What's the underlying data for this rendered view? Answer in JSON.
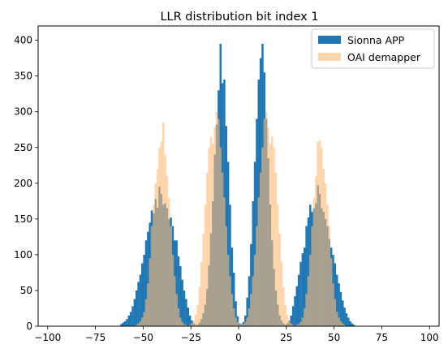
{
  "chart_data": {
    "type": "bar",
    "title": "LLR distribution bit index 1",
    "xlabel": "",
    "ylabel": "",
    "xlim": [
      -105,
      105
    ],
    "ylim": [
      0,
      420
    ],
    "xticks": [
      -100,
      -75,
      -50,
      -25,
      0,
      25,
      50,
      75,
      100
    ],
    "yticks": [
      0,
      50,
      100,
      150,
      200,
      250,
      300,
      350,
      400
    ],
    "grid": false,
    "legend_position": "top-right",
    "bin_width": 1,
    "series": [
      {
        "name": "Sionna APP",
        "color": "#1f77b4",
        "opacity": 1.0,
        "bins": [
          [
            -62,
            3
          ],
          [
            -61,
            5
          ],
          [
            -60,
            7
          ],
          [
            -59,
            10
          ],
          [
            -58,
            15
          ],
          [
            -57,
            20
          ],
          [
            -56,
            28
          ],
          [
            -55,
            38
          ],
          [
            -54,
            50
          ],
          [
            -53,
            62
          ],
          [
            -52,
            72
          ],
          [
            -51,
            88
          ],
          [
            -50,
            100
          ],
          [
            -49,
            120
          ],
          [
            -48,
            132
          ],
          [
            -47,
            145
          ],
          [
            -46,
            162
          ],
          [
            -45,
            158
          ],
          [
            -44,
            178
          ],
          [
            -43,
            166
          ],
          [
            -42,
            195
          ],
          [
            -41,
            185
          ],
          [
            -40,
            170
          ],
          [
            -39,
            172
          ],
          [
            -38,
            165
          ],
          [
            -37,
            150
          ],
          [
            -36,
            152
          ],
          [
            -35,
            140
          ],
          [
            -34,
            120
          ],
          [
            -33,
            120
          ],
          [
            -32,
            98
          ],
          [
            -31,
            84
          ],
          [
            -30,
            65
          ],
          [
            -29,
            50
          ],
          [
            -28,
            38
          ],
          [
            -27,
            26
          ],
          [
            -26,
            15
          ],
          [
            -25,
            8
          ],
          [
            -24,
            4
          ],
          [
            -23,
            2
          ],
          [
            -22,
            2
          ],
          [
            -21,
            5
          ],
          [
            -20,
            10
          ],
          [
            -19,
            18
          ],
          [
            -18,
            30
          ],
          [
            -17,
            52
          ],
          [
            -16,
            85
          ],
          [
            -15,
            130
          ],
          [
            -14,
            175
          ],
          [
            -13,
            240
          ],
          [
            -12,
            282
          ],
          [
            -11,
            330
          ],
          [
            -10,
            395
          ],
          [
            -9,
            340
          ],
          [
            -8,
            345
          ],
          [
            -7,
            280
          ],
          [
            -6,
            230
          ],
          [
            -5,
            170
          ],
          [
            -4,
            110
          ],
          [
            -3,
            75
          ],
          [
            -2,
            35
          ],
          [
            -1,
            14
          ],
          [
            0,
            4
          ],
          [
            1,
            3
          ],
          [
            2,
            6
          ],
          [
            3,
            15
          ],
          [
            4,
            40
          ],
          [
            5,
            70
          ],
          [
            6,
            115
          ],
          [
            7,
            175
          ],
          [
            8,
            230
          ],
          [
            9,
            290
          ],
          [
            10,
            345
          ],
          [
            11,
            375
          ],
          [
            12,
            395
          ],
          [
            13,
            355
          ],
          [
            14,
            290
          ],
          [
            15,
            235
          ],
          [
            16,
            170
          ],
          [
            17,
            120
          ],
          [
            18,
            80
          ],
          [
            19,
            50
          ],
          [
            20,
            30
          ],
          [
            21,
            15
          ],
          [
            22,
            8
          ],
          [
            23,
            4
          ],
          [
            24,
            2
          ],
          [
            25,
            4
          ],
          [
            26,
            8
          ],
          [
            27,
            15
          ],
          [
            28,
            28
          ],
          [
            29,
            42
          ],
          [
            30,
            56
          ],
          [
            31,
            72
          ],
          [
            32,
            90
          ],
          [
            33,
            102
          ],
          [
            34,
            110
          ],
          [
            35,
            140
          ],
          [
            36,
            152
          ],
          [
            37,
            170
          ],
          [
            38,
            160
          ],
          [
            39,
            165
          ],
          [
            40,
            172
          ],
          [
            41,
            197
          ],
          [
            42,
            185
          ],
          [
            43,
            165
          ],
          [
            44,
            160
          ],
          [
            45,
            150
          ],
          [
            46,
            140
          ],
          [
            47,
            122
          ],
          [
            48,
            110
          ],
          [
            49,
            100
          ],
          [
            50,
            88
          ],
          [
            51,
            72
          ],
          [
            52,
            60
          ],
          [
            53,
            48
          ],
          [
            54,
            36
          ],
          [
            55,
            26
          ],
          [
            56,
            18
          ],
          [
            57,
            12
          ],
          [
            58,
            7
          ],
          [
            59,
            4
          ],
          [
            60,
            2
          ]
        ]
      },
      {
        "name": "OAI demapper",
        "color": "#ffbb78",
        "opacity": 0.6,
        "bins": [
          [
            -54,
            2
          ],
          [
            -53,
            4
          ],
          [
            -52,
            7
          ],
          [
            -51,
            12
          ],
          [
            -50,
            20
          ],
          [
            -49,
            38
          ],
          [
            -48,
            60
          ],
          [
            -47,
            95
          ],
          [
            -46,
            140
          ],
          [
            -45,
            170
          ],
          [
            -44,
            200
          ],
          [
            -43,
            220
          ],
          [
            -42,
            250
          ],
          [
            -41,
            258
          ],
          [
            -40,
            285
          ],
          [
            -39,
            240
          ],
          [
            -38,
            210
          ],
          [
            -37,
            180
          ],
          [
            -36,
            140
          ],
          [
            -35,
            100
          ],
          [
            -34,
            70
          ],
          [
            -33,
            45
          ],
          [
            -32,
            25
          ],
          [
            -31,
            12
          ],
          [
            -30,
            6
          ],
          [
            -29,
            3
          ],
          [
            -28,
            2
          ],
          [
            -26,
            2
          ],
          [
            -25,
            4
          ],
          [
            -24,
            8
          ],
          [
            -23,
            16
          ],
          [
            -22,
            30
          ],
          [
            -21,
            55
          ],
          [
            -20,
            90
          ],
          [
            -19,
            130
          ],
          [
            -18,
            170
          ],
          [
            -17,
            215
          ],
          [
            -16,
            250
          ],
          [
            -15,
            265
          ],
          [
            -14,
            255
          ],
          [
            -13,
            278
          ],
          [
            -12,
            300
          ],
          [
            -11,
            290
          ],
          [
            -10,
            250
          ],
          [
            -9,
            215
          ],
          [
            -8,
            180
          ],
          [
            -7,
            140
          ],
          [
            -6,
            100
          ],
          [
            -5,
            70
          ],
          [
            -4,
            45
          ],
          [
            -3,
            25
          ],
          [
            -2,
            12
          ],
          [
            -1,
            6
          ],
          [
            0,
            3
          ],
          [
            1,
            2
          ],
          [
            2,
            3
          ],
          [
            3,
            6
          ],
          [
            4,
            12
          ],
          [
            5,
            25
          ],
          [
            6,
            45
          ],
          [
            7,
            70
          ],
          [
            8,
            100
          ],
          [
            9,
            140
          ],
          [
            10,
            180
          ],
          [
            11,
            215
          ],
          [
            12,
            250
          ],
          [
            13,
            290
          ],
          [
            14,
            300
          ],
          [
            15,
            278
          ],
          [
            16,
            255
          ],
          [
            17,
            265
          ],
          [
            18,
            250
          ],
          [
            19,
            215
          ],
          [
            20,
            170
          ],
          [
            21,
            130
          ],
          [
            22,
            90
          ],
          [
            23,
            55
          ],
          [
            24,
            30
          ],
          [
            25,
            16
          ],
          [
            26,
            8
          ],
          [
            27,
            4
          ],
          [
            28,
            2
          ],
          [
            30,
            2
          ],
          [
            31,
            3
          ],
          [
            32,
            6
          ],
          [
            33,
            12
          ],
          [
            34,
            25
          ],
          [
            35,
            45
          ],
          [
            36,
            70
          ],
          [
            37,
            100
          ],
          [
            38,
            140
          ],
          [
            39,
            180
          ],
          [
            40,
            210
          ],
          [
            41,
            258
          ],
          [
            42,
            260
          ],
          [
            43,
            250
          ],
          [
            44,
            220
          ],
          [
            45,
            200
          ],
          [
            46,
            170
          ],
          [
            47,
            140
          ],
          [
            48,
            95
          ],
          [
            49,
            60
          ],
          [
            50,
            38
          ],
          [
            51,
            20
          ],
          [
            52,
            12
          ],
          [
            53,
            7
          ],
          [
            54,
            4
          ],
          [
            55,
            2
          ]
        ]
      }
    ]
  }
}
